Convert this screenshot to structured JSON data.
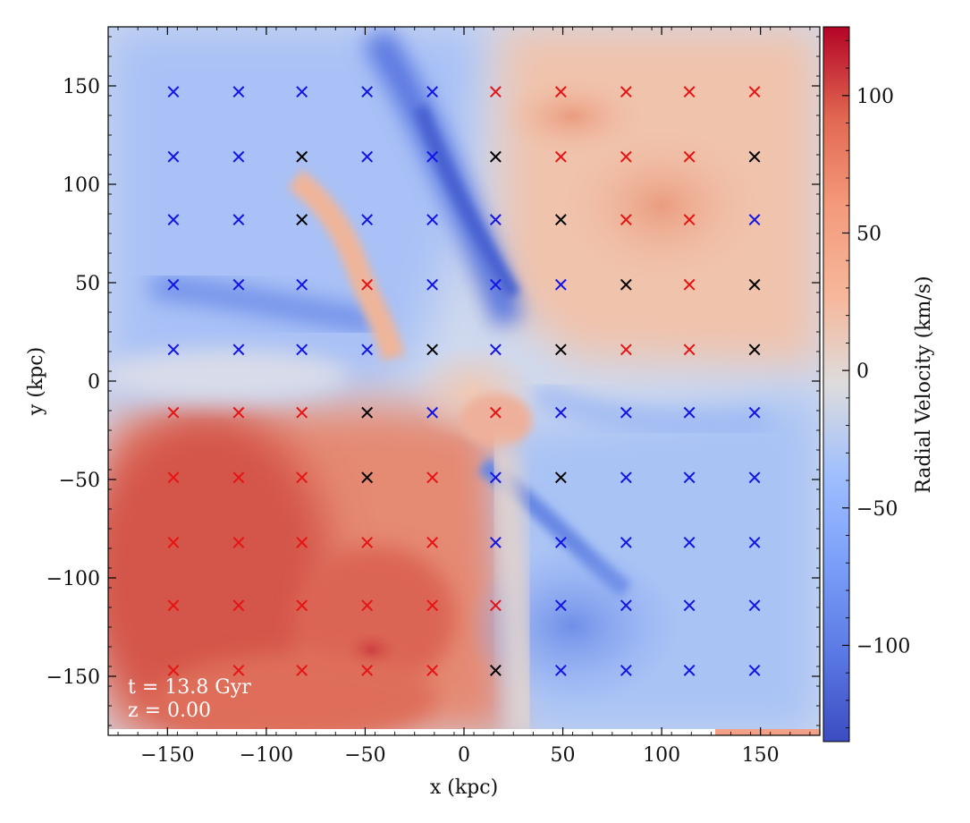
{
  "chart_data": {
    "type": "heatmap",
    "title": "",
    "xlabel": "x  (kpc)",
    "ylabel": "y  (kpc)",
    "xlim": [
      -180,
      180
    ],
    "ylim": [
      -180,
      180
    ],
    "xticks": [
      -150,
      -100,
      -50,
      0,
      50,
      100,
      150
    ],
    "yticks": [
      -150,
      -100,
      -50,
      0,
      50,
      100,
      150
    ],
    "colorbar": {
      "label": "Radial Velocity  (km/s)",
      "colormap": "coolwarm",
      "range": [
        -135,
        125
      ],
      "ticks": [
        -100,
        -50,
        0,
        50,
        100
      ]
    },
    "annotations": [
      "t = 13.8 Gyr",
      "z = 0.00"
    ],
    "marker_positions": [
      -147,
      -114,
      -82,
      -49,
      -16,
      16,
      49,
      82,
      114,
      147
    ],
    "marker_rows": [
      {
        "y": 147,
        "colors": [
          "blue",
          "blue",
          "blue",
          "blue",
          "blue",
          "red",
          "red",
          "red",
          "red",
          "red"
        ]
      },
      {
        "y": 114,
        "colors": [
          "blue",
          "blue",
          "black",
          "blue",
          "blue",
          "black",
          "red",
          "red",
          "red",
          "black"
        ]
      },
      {
        "y": 82,
        "colors": [
          "blue",
          "blue",
          "black",
          "blue",
          "blue",
          "blue",
          "black",
          "red",
          "red",
          "blue"
        ]
      },
      {
        "y": 49,
        "colors": [
          "blue",
          "blue",
          "blue",
          "red",
          "blue",
          "blue",
          "blue",
          "black",
          "red",
          "black"
        ]
      },
      {
        "y": 16,
        "colors": [
          "blue",
          "blue",
          "blue",
          "blue",
          "black",
          "blue",
          "black",
          "red",
          "red",
          "black"
        ]
      },
      {
        "y": -16,
        "colors": [
          "red",
          "red",
          "red",
          "black",
          "blue",
          "red",
          "blue",
          "blue",
          "blue",
          "blue"
        ]
      },
      {
        "y": -49,
        "colors": [
          "red",
          "red",
          "red",
          "black",
          "red",
          "blue",
          "black",
          "blue",
          "blue",
          "blue"
        ]
      },
      {
        "y": -82,
        "colors": [
          "red",
          "red",
          "red",
          "red",
          "red",
          "blue",
          "blue",
          "blue",
          "blue",
          "blue"
        ]
      },
      {
        "y": -114,
        "colors": [
          "red",
          "red",
          "red",
          "red",
          "red",
          "red",
          "blue",
          "blue",
          "blue",
          "blue"
        ]
      },
      {
        "y": -147,
        "colors": [
          "red",
          "red",
          "red",
          "red",
          "red",
          "black",
          "blue",
          "blue",
          "blue",
          "blue"
        ]
      }
    ],
    "marker_colors": {
      "blue": "#1414e6",
      "red": "#e61414",
      "black": "#000000"
    }
  }
}
